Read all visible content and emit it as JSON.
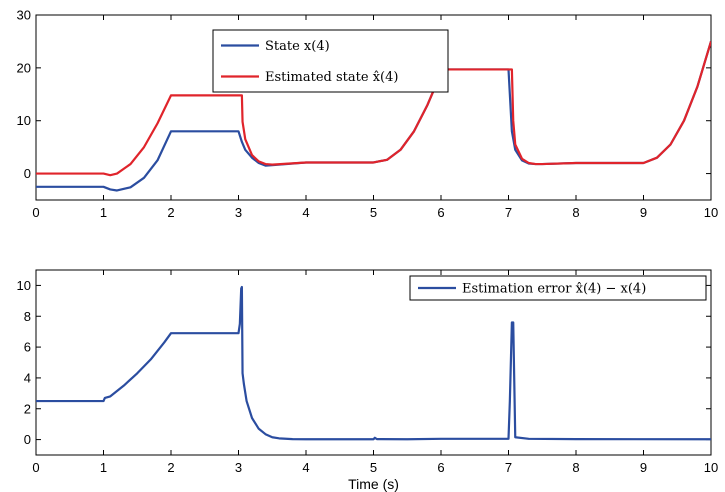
{
  "chart_data": [
    {
      "type": "line",
      "xlim": [
        0,
        10
      ],
      "ylim": [
        -5,
        30
      ],
      "xticks": [
        0,
        1,
        2,
        3,
        4,
        5,
        6,
        7,
        8,
        9,
        10
      ],
      "yticks": [
        0,
        10,
        20,
        30
      ],
      "xlabel": "",
      "ylabel": "",
      "legend_position": "top-center",
      "series": [
        {
          "name": "State x(4)",
          "color": "#2b4da0",
          "x": [
            0,
            1.0,
            1.1,
            1.2,
            1.4,
            1.6,
            1.8,
            2.0,
            3.0,
            3.05,
            3.1,
            3.2,
            3.3,
            3.4,
            3.5,
            4.0,
            5.0,
            5.2,
            5.4,
            5.6,
            5.8,
            6.0,
            6.05,
            7.0,
            7.02,
            7.05,
            7.1,
            7.2,
            7.3,
            7.4,
            7.5,
            8.0,
            9.0,
            9.2,
            9.4,
            9.6,
            9.8,
            10.0
          ],
          "y": [
            -2.5,
            -2.5,
            -3.0,
            -3.2,
            -2.6,
            -0.8,
            2.5,
            8.0,
            8.0,
            6.0,
            4.5,
            3.0,
            2.0,
            1.5,
            1.6,
            2.1,
            2.1,
            2.6,
            4.5,
            8.0,
            13.0,
            19.0,
            19.7,
            19.7,
            15.0,
            8.0,
            4.5,
            2.5,
            1.9,
            1.8,
            1.8,
            2.0,
            2.0,
            3.0,
            5.5,
            10.0,
            16.5,
            25.0
          ]
        },
        {
          "name": "Estimated state x̂(4)",
          "color": "#e0242b",
          "x": [
            0,
            1.0,
            1.1,
            1.2,
            1.4,
            1.6,
            1.8,
            2.0,
            3.05,
            3.06,
            3.1,
            3.2,
            3.3,
            3.4,
            3.5,
            4.0,
            5.0,
            5.2,
            5.4,
            5.6,
            5.8,
            6.0,
            6.05,
            7.05,
            7.07,
            7.1,
            7.2,
            7.3,
            7.4,
            7.5,
            8.0,
            9.0,
            9.2,
            9.4,
            9.6,
            9.8,
            10.0
          ],
          "y": [
            0,
            0,
            -0.3,
            0.0,
            1.8,
            5.0,
            9.5,
            14.8,
            14.8,
            9.8,
            6.5,
            3.5,
            2.3,
            1.8,
            1.7,
            2.1,
            2.1,
            2.6,
            4.5,
            8.0,
            13.0,
            19.0,
            19.7,
            19.7,
            10.0,
            5.5,
            2.8,
            2.0,
            1.8,
            1.8,
            2.0,
            2.0,
            3.0,
            5.5,
            10.0,
            16.5,
            25.0
          ]
        }
      ]
    },
    {
      "type": "line",
      "xlim": [
        0,
        10
      ],
      "ylim": [
        -1,
        11
      ],
      "xticks": [
        0,
        1,
        2,
        3,
        4,
        5,
        6,
        7,
        8,
        9,
        10
      ],
      "yticks": [
        0,
        2,
        4,
        6,
        8,
        10
      ],
      "xlabel": "Time (s)",
      "ylabel": "",
      "legend_position": "top-right",
      "series": [
        {
          "name": "Estimation error x̂(4) − x(4)",
          "color": "#2b4da0",
          "x": [
            0,
            1.0,
            1.02,
            1.1,
            1.3,
            1.5,
            1.7,
            1.9,
            2.0,
            3.0,
            3.02,
            3.04,
            3.05,
            3.06,
            3.08,
            3.12,
            3.2,
            3.3,
            3.4,
            3.5,
            3.6,
            3.8,
            4.0,
            5.0,
            5.02,
            5.05,
            5.5,
            6.0,
            7.0,
            7.02,
            7.05,
            7.07,
            7.1,
            7.3,
            8.0,
            10.0
          ],
          "y": [
            2.5,
            2.5,
            2.7,
            2.8,
            3.5,
            4.3,
            5.2,
            6.3,
            6.9,
            6.9,
            7.5,
            9.8,
            9.9,
            4.3,
            3.6,
            2.5,
            1.4,
            0.7,
            0.35,
            0.15,
            0.08,
            0.03,
            0.02,
            0.02,
            0.12,
            0.03,
            0.02,
            0.05,
            0.05,
            2.5,
            7.6,
            7.6,
            0.15,
            0.05,
            0.03,
            0.02
          ]
        }
      ]
    }
  ]
}
